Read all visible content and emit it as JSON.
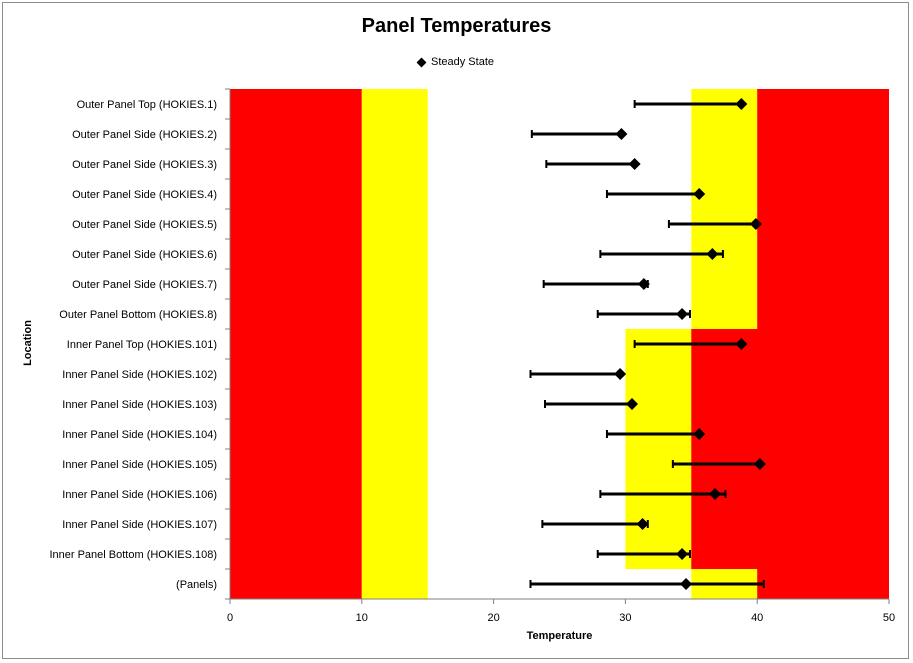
{
  "chart_data": {
    "type": "scatter",
    "title": "Panel Temperatures",
    "xlabel": "Temperature",
    "ylabel": "Location",
    "xlim": [
      0,
      50
    ],
    "xticks": [
      0,
      10,
      20,
      30,
      40,
      50
    ],
    "grid": false,
    "legend_position": "top-center",
    "legend": [
      "Steady State"
    ],
    "categories": [
      "Outer Panel Top (HOKIES.1)",
      "Outer Panel Side (HOKIES.2)",
      "Outer Panel Side (HOKIES.3)",
      "Outer Panel Side (HOKIES.4)",
      "Outer Panel Side (HOKIES.5)",
      "Outer Panel Side (HOKIES.6)",
      "Outer Panel Side (HOKIES.7)",
      "Outer Panel Bottom (HOKIES.8)",
      "Inner Panel Top (HOKIES.101)",
      "Inner Panel Side (HOKIES.102)",
      "Inner Panel Side (HOKIES.103)",
      "Inner Panel Side (HOKIES.104)",
      "Inner Panel Side (HOKIES.105)",
      "Inner Panel Side (HOKIES.106)",
      "Inner Panel Side (HOKIES.107)",
      "Inner Panel Bottom  (HOKIES.108)",
      "(Panels)"
    ],
    "series": [
      {
        "name": "Steady State",
        "values": [
          38.8,
          29.7,
          30.7,
          35.6,
          39.9,
          36.6,
          31.4,
          34.3,
          38.8,
          29.6,
          30.5,
          35.6,
          40.2,
          36.8,
          31.3,
          34.3,
          34.6
        ],
        "err_low": [
          30.7,
          22.9,
          24.0,
          28.6,
          33.3,
          28.1,
          23.8,
          27.9,
          30.7,
          22.8,
          23.9,
          28.6,
          33.6,
          28.1,
          23.7,
          27.9,
          22.8
        ],
        "err_high": [
          38.8,
          29.7,
          30.7,
          35.6,
          39.9,
          37.4,
          31.7,
          34.9,
          38.8,
          29.6,
          30.5,
          35.6,
          40.2,
          37.6,
          31.7,
          34.9,
          40.5
        ]
      }
    ],
    "bands": [
      {
        "color": "#ff0000",
        "x0": 0,
        "x1": 10,
        "from": 0,
        "to": 16
      },
      {
        "color": "#ffff00",
        "x0": 10,
        "x1": 15,
        "from": 0,
        "to": 16
      },
      {
        "color": "#ffff00",
        "x0": 35,
        "x1": 40,
        "from": 0,
        "to": 7
      },
      {
        "color": "#ff0000",
        "x0": 40,
        "x1": 50,
        "from": 0,
        "to": 7
      },
      {
        "color": "#ffff00",
        "x0": 30,
        "x1": 35,
        "from": 8,
        "to": 15
      },
      {
        "color": "#ff0000",
        "x0": 35,
        "x1": 50,
        "from": 8,
        "to": 15
      },
      {
        "color": "#ffff00",
        "x0": 35,
        "x1": 40,
        "from": 16,
        "to": 16
      },
      {
        "color": "#ff0000",
        "x0": 40,
        "x1": 50,
        "from": 16,
        "to": 16
      }
    ],
    "colors": {
      "marker": "#000000",
      "red": "#ff0000",
      "yellow": "#ffff00"
    }
  }
}
